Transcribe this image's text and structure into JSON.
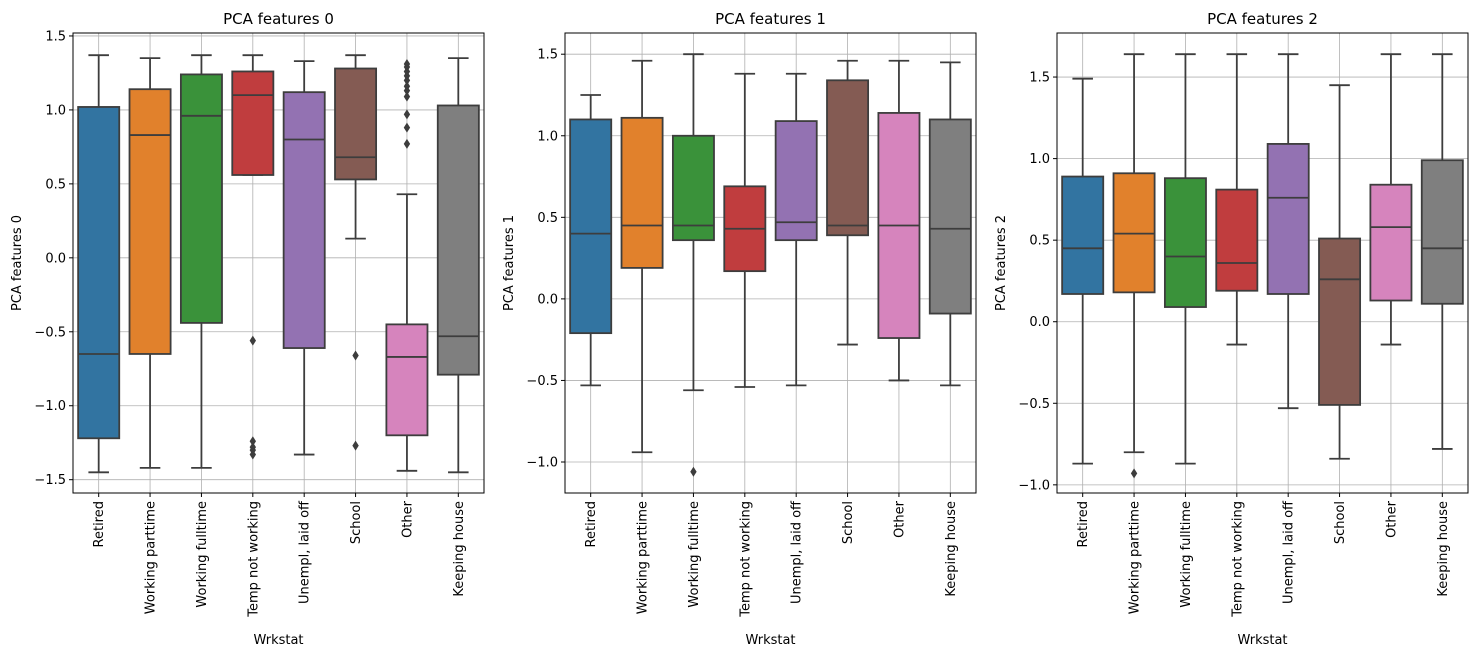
{
  "chart_data": [
    {
      "type": "box",
      "title": "PCA features 0",
      "xlabel": "Wrkstat",
      "ylabel": "PCA features 0",
      "categories": [
        "Retired",
        "Working parttime",
        "Working fulltime",
        "Temp not working",
        "Unempl, laid off",
        "School",
        "Other",
        "Keeping house"
      ],
      "ylim": [
        -1.59,
        1.52
      ],
      "yticks": [
        -1.5,
        -1.0,
        -0.5,
        0.0,
        0.5,
        1.0,
        1.5
      ],
      "ytick_labels": [
        "−1.5",
        "−1.0",
        "−0.5",
        "0.0",
        "0.5",
        "1.0",
        "1.5"
      ],
      "grid": true,
      "boxes": [
        {
          "whislo": -1.45,
          "q1": -1.22,
          "med": -0.65,
          "q3": 1.02,
          "whishi": 1.37,
          "fliers": []
        },
        {
          "whislo": -1.42,
          "q1": -0.65,
          "med": 0.83,
          "q3": 1.14,
          "whishi": 1.35,
          "fliers": []
        },
        {
          "whislo": -1.42,
          "q1": -0.44,
          "med": 0.96,
          "q3": 1.24,
          "whishi": 1.37,
          "fliers": []
        },
        {
          "whislo": 0.56,
          "q1": 0.56,
          "med": 1.1,
          "q3": 1.26,
          "whishi": 1.37,
          "fliers": [
            -0.56,
            -1.24,
            -1.28,
            -1.3,
            -1.33
          ]
        },
        {
          "whislo": -1.33,
          "q1": -0.61,
          "med": 0.8,
          "q3": 1.12,
          "whishi": 1.33,
          "fliers": []
        },
        {
          "whislo": 0.13,
          "q1": 0.53,
          "med": 0.68,
          "q3": 1.28,
          "whishi": 1.37,
          "fliers": [
            -0.66,
            -1.27
          ]
        },
        {
          "whislo": -1.44,
          "q1": -1.2,
          "med": -0.67,
          "q3": -0.45,
          "whishi": 0.43,
          "fliers": [
            0.77,
            0.88,
            0.97,
            1.09,
            1.13,
            1.16,
            1.2,
            1.23,
            1.26,
            1.29,
            1.31
          ]
        },
        {
          "whislo": -1.45,
          "q1": -0.79,
          "med": -0.53,
          "q3": 1.03,
          "whishi": 1.35,
          "fliers": []
        }
      ]
    },
    {
      "type": "box",
      "title": "PCA features 1",
      "xlabel": "Wrkstat",
      "ylabel": "PCA features 1",
      "categories": [
        "Retired",
        "Working parttime",
        "Working fulltime",
        "Temp not working",
        "Unempl, laid off",
        "School",
        "Other",
        "Keeping house"
      ],
      "ylim": [
        -1.19,
        1.63
      ],
      "yticks": [
        -1.0,
        -0.5,
        0.0,
        0.5,
        1.0,
        1.5
      ],
      "ytick_labels": [
        "−1.0",
        "−0.5",
        "0.0",
        "0.5",
        "1.0",
        "1.5"
      ],
      "grid": true,
      "boxes": [
        {
          "whislo": -0.53,
          "q1": -0.21,
          "med": 0.4,
          "q3": 1.1,
          "whishi": 1.25,
          "fliers": []
        },
        {
          "whislo": -0.94,
          "q1": 0.19,
          "med": 0.45,
          "q3": 1.11,
          "whishi": 1.46,
          "fliers": []
        },
        {
          "whislo": -0.56,
          "q1": 0.36,
          "med": 0.45,
          "q3": 1.0,
          "whishi": 1.5,
          "fliers": [
            -1.06
          ]
        },
        {
          "whislo": -0.54,
          "q1": 0.17,
          "med": 0.43,
          "q3": 0.69,
          "whishi": 1.38,
          "fliers": []
        },
        {
          "whislo": -0.53,
          "q1": 0.36,
          "med": 0.47,
          "q3": 1.09,
          "whishi": 1.38,
          "fliers": []
        },
        {
          "whislo": -0.28,
          "q1": 0.39,
          "med": 0.45,
          "q3": 1.34,
          "whishi": 1.46,
          "fliers": []
        },
        {
          "whislo": -0.5,
          "q1": -0.24,
          "med": 0.45,
          "q3": 1.14,
          "whishi": 1.46,
          "fliers": []
        },
        {
          "whislo": -0.53,
          "q1": -0.09,
          "med": 0.43,
          "q3": 1.1,
          "whishi": 1.45,
          "fliers": []
        }
      ]
    },
    {
      "type": "box",
      "title": "PCA features 2",
      "xlabel": "Wrkstat",
      "ylabel": "PCA features 2",
      "categories": [
        "Retired",
        "Working parttime",
        "Working fulltime",
        "Temp not working",
        "Unempl, laid off",
        "School",
        "Other",
        "Keeping house"
      ],
      "ylim": [
        -1.05,
        1.77
      ],
      "yticks": [
        -1.0,
        -0.5,
        0.0,
        0.5,
        1.0,
        1.5
      ],
      "ytick_labels": [
        "−1.0",
        "−0.5",
        "0.0",
        "0.5",
        "1.0",
        "1.5"
      ],
      "grid": true,
      "boxes": [
        {
          "whislo": -0.87,
          "q1": 0.17,
          "med": 0.45,
          "q3": 0.89,
          "whishi": 1.49,
          "fliers": []
        },
        {
          "whislo": -0.8,
          "q1": 0.18,
          "med": 0.54,
          "q3": 0.91,
          "whishi": 1.64,
          "fliers": [
            -0.93
          ]
        },
        {
          "whislo": -0.87,
          "q1": 0.09,
          "med": 0.4,
          "q3": 0.88,
          "whishi": 1.64,
          "fliers": []
        },
        {
          "whislo": -0.14,
          "q1": 0.19,
          "med": 0.36,
          "q3": 0.81,
          "whishi": 1.64,
          "fliers": []
        },
        {
          "whislo": -0.53,
          "q1": 0.17,
          "med": 0.76,
          "q3": 1.09,
          "whishi": 1.64,
          "fliers": []
        },
        {
          "whislo": -0.84,
          "q1": -0.51,
          "med": 0.26,
          "q3": 0.51,
          "whishi": 1.45,
          "fliers": []
        },
        {
          "whislo": -0.14,
          "q1": 0.13,
          "med": 0.58,
          "q3": 0.84,
          "whishi": 1.64,
          "fliers": []
        },
        {
          "whislo": -0.78,
          "q1": 0.11,
          "med": 0.45,
          "q3": 0.99,
          "whishi": 1.64,
          "fliers": []
        }
      ]
    }
  ],
  "colors": [
    "#3274a1",
    "#e1812c",
    "#3a923a",
    "#c03d3e",
    "#9372b2",
    "#845b53",
    "#d684bd",
    "#7f7f7f"
  ],
  "line_color": "#3d3d3d",
  "grid_color": "#b0b0b0"
}
